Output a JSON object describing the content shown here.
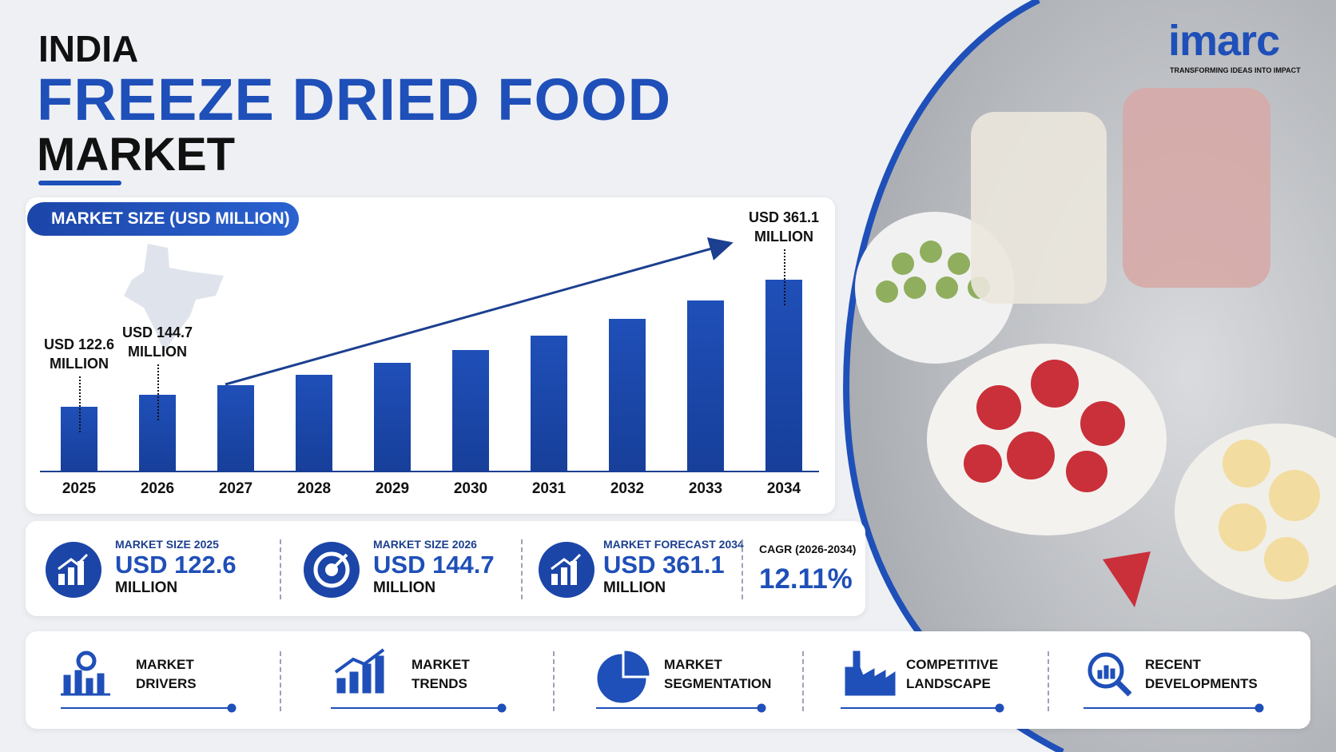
{
  "header": {
    "country": "INDIA",
    "title": "FREEZE DRIED FOOD",
    "subtitle": "MARKET"
  },
  "logo": {
    "name": "imarc",
    "tagline": "TRANSFORMING IDEAS INTO IMPACT"
  },
  "chart_data": {
    "type": "bar",
    "title": "MARKET SIZE (USD MILLION)",
    "categories": [
      "2025",
      "2026",
      "2027",
      "2028",
      "2029",
      "2030",
      "2031",
      "2032",
      "2033",
      "2034"
    ],
    "values": [
      122.6,
      144.7,
      162.2,
      181.9,
      203.9,
      228.6,
      256.3,
      287.3,
      322.1,
      361.1
    ],
    "value_labels": [
      "USD 122.6 MILLION",
      "USD 144.7 MILLION",
      null,
      null,
      null,
      null,
      null,
      null,
      null,
      "USD 361.1 MILLION"
    ],
    "color": "#1f4fb8"
  },
  "stats": [
    {
      "label": "MARKET SIZE 2025",
      "value": "USD 122.6",
      "unit": "MILLION"
    },
    {
      "label": "MARKET SIZE 2026",
      "value": "USD 144.7",
      "unit": "MILLION"
    },
    {
      "label": "MARKET FORECAST 2034",
      "value": "USD 361.1",
      "unit": "MILLION"
    },
    {
      "label": "CAGR (2026-2034)",
      "value": "12.11%"
    }
  ],
  "sections": [
    "MARKET DRIVERS",
    "MARKET TRENDS",
    "MARKET SEGMENTATION",
    "COMPETITIVE LANDSCAPE",
    "RECENT DEVELOPMENTS"
  ]
}
